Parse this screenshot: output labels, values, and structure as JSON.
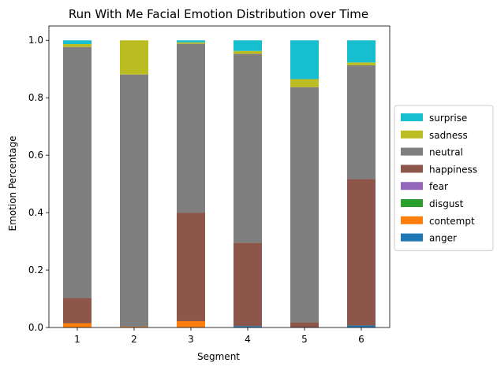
{
  "chart_data": {
    "type": "bar",
    "stacked": true,
    "title": "Run With Me Facial Emotion Distribution over Time",
    "xlabel": "Segment",
    "ylabel": "Emotion Percentage",
    "categories": [
      "1",
      "2",
      "3",
      "4",
      "5",
      "6"
    ],
    "ylim": [
      0,
      1.05
    ],
    "yticks": [
      "0.0",
      "0.2",
      "0.4",
      "0.6",
      "0.8",
      "1.0"
    ],
    "legend_position": "right",
    "series": [
      {
        "name": "anger",
        "color": "#1f77b4",
        "values": [
          0.0,
          0.0,
          0.0,
          0.005,
          0.0,
          0.007
        ]
      },
      {
        "name": "contempt",
        "color": "#ff7f0e",
        "values": [
          0.015,
          0.003,
          0.022,
          0.0,
          0.0,
          0.0
        ]
      },
      {
        "name": "disgust",
        "color": "#2ca02c",
        "values": [
          0.0,
          0.0,
          0.0,
          0.0,
          0.0,
          0.0
        ]
      },
      {
        "name": "fear",
        "color": "#9467bd",
        "values": [
          0.0,
          0.0,
          0.0,
          0.0,
          0.0,
          0.0
        ]
      },
      {
        "name": "happiness",
        "color": "#8c564b",
        "values": [
          0.088,
          0.0,
          0.378,
          0.29,
          0.018,
          0.51
        ]
      },
      {
        "name": "neutral",
        "color": "#7f7f7f",
        "values": [
          0.874,
          0.878,
          0.588,
          0.658,
          0.819,
          0.396
        ]
      },
      {
        "name": "sadness",
        "color": "#bcbd22",
        "values": [
          0.01,
          0.119,
          0.005,
          0.01,
          0.028,
          0.01
        ]
      },
      {
        "name": "surprise",
        "color": "#17becf",
        "values": [
          0.013,
          0.0,
          0.007,
          0.037,
          0.135,
          0.077
        ]
      }
    ]
  }
}
